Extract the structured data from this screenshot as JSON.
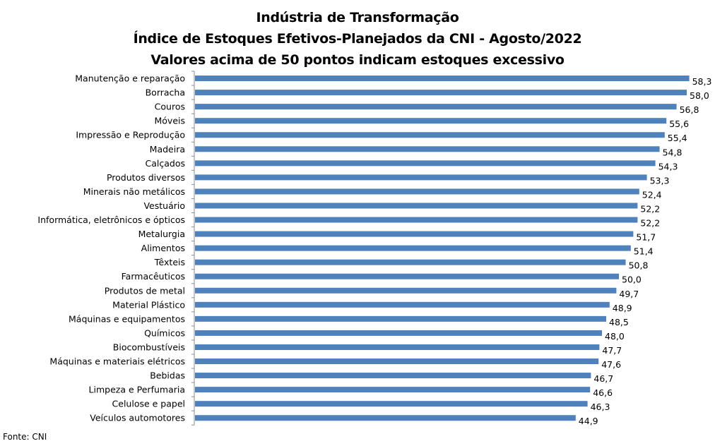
{
  "chart_data": {
    "type": "bar",
    "orientation": "horizontal",
    "title_lines": [
      "Indústria de Transformação",
      "Índice de Estoques Efetivos-Planejados da CNI - Agosto/2022",
      "Valores acima de 50 pontos indicam estoques excessivo"
    ],
    "xlim": [
      0,
      60
    ],
    "grid": false,
    "legend": "none",
    "bar_color": "#4f81bd",
    "categories": [
      "Manutenção e reparação",
      "Borracha",
      "Couros",
      "Móveis",
      "Impressão e Reprodução ",
      "Madeira",
      "Calçados",
      "Produtos diversos",
      "Minerais não metálicos",
      "Vestuário",
      "Informática, eletrônicos e ópticos",
      "Metalurgia",
      "Alimentos",
      "Têxteis",
      "Farmacêuticos",
      "Produtos de metal",
      "Material Plástico",
      "Máquinas e equipamentos",
      "Químicos",
      "Biocombustíveis",
      "Máquinas e materiais elétricos",
      "Bebidas",
      "Limpeza e Perfumaria",
      "Celulose e papel",
      "Veículos automotores"
    ],
    "values": [
      58.3,
      58.0,
      56.8,
      55.6,
      55.4,
      54.8,
      54.3,
      53.3,
      52.4,
      52.2,
      52.2,
      51.7,
      51.4,
      50.8,
      50.0,
      49.7,
      48.9,
      48.5,
      48.0,
      47.7,
      47.6,
      46.7,
      46.6,
      46.3,
      44.9
    ],
    "value_labels": [
      "58,3",
      "58,0",
      "56,8",
      "55,6",
      "55,4",
      "54,8",
      "54,3",
      "53,3",
      "52,4",
      "52,2",
      "52,2",
      "51,7",
      "51,4",
      "50,8",
      "50,0",
      "49,7",
      "48,9",
      "48,5",
      "48,0",
      "47,7",
      "47,6",
      "46,7",
      "46,6",
      "46,3",
      "44,9"
    ]
  },
  "source": "Fonte: CNI"
}
